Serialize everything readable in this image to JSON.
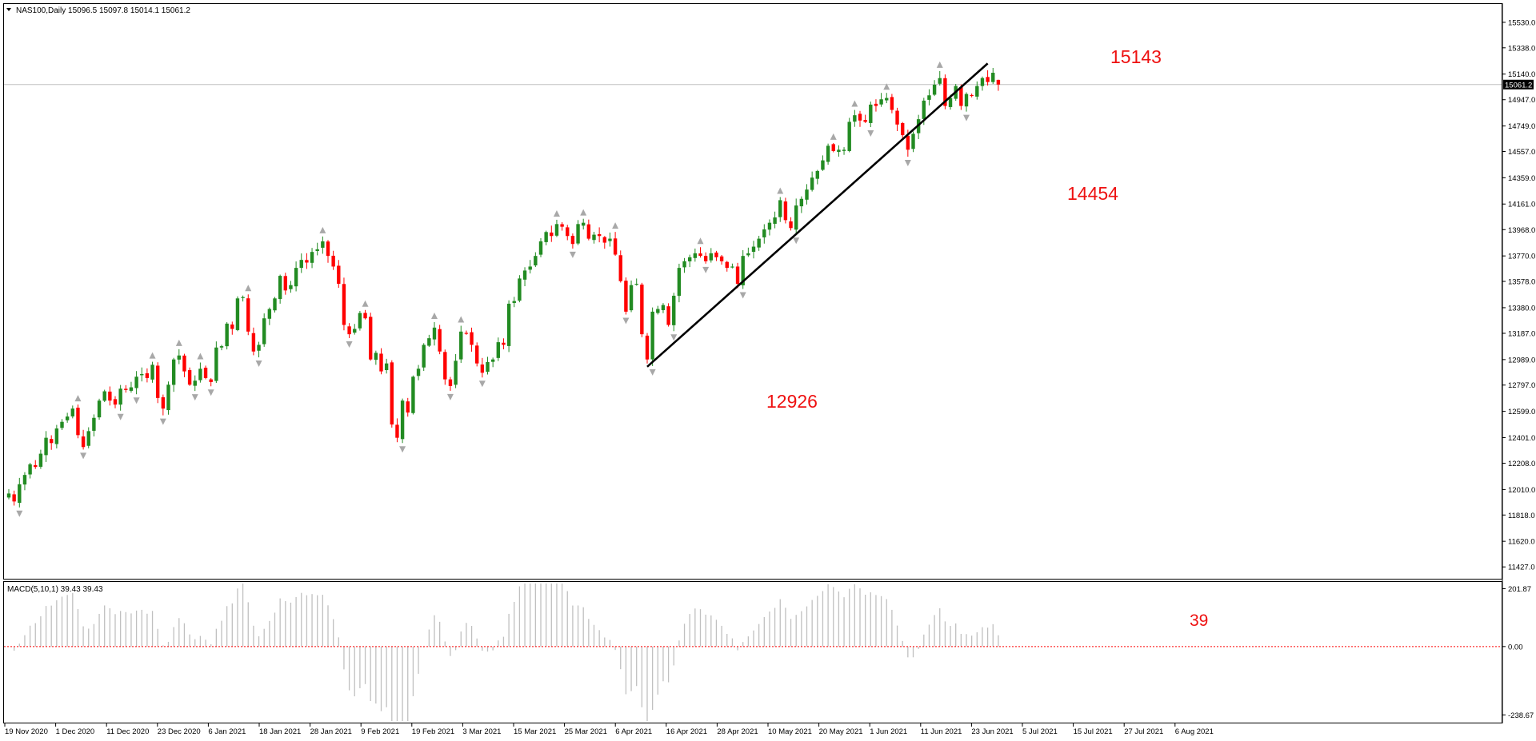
{
  "header": {
    "symbol_info": "NAS100,Daily  15096.5 15097.8 15014.1 15061.2",
    "macd_info": "MACD(5,10,1) 39.43 39.43"
  },
  "colors": {
    "bull": "#228B22",
    "bear": "#FF0000",
    "annotation": "#EE1111",
    "trendline": "#000000",
    "macd_bar": "#C0C0C0",
    "zero_line": "#FF0000",
    "price_line": "#C0C0C0",
    "current_price_bg": "#000000"
  },
  "chart_data": [
    {
      "type": "candlestick",
      "title": "NAS100,Daily",
      "ylim": [
        11350,
        15650
      ],
      "price_scale_labels": [
        "15530.0",
        "15338.0",
        "15140.0",
        "14947.0",
        "14749.0",
        "14557.0",
        "14359.0",
        "14161.0",
        "13968.0",
        "13770.0",
        "13578.0",
        "13380.0",
        "13187.0",
        "12989.0",
        "12797.0",
        "12599.0",
        "12401.0",
        "12208.0",
        "12010.0",
        "11818.0",
        "11620.0",
        "11427.0"
      ],
      "current_price": "15061.2",
      "date_labels": [
        "19 Nov 2020",
        "1 Dec 2020",
        "11 Dec 2020",
        "23 Dec 2020",
        "6 Jan 2021",
        "18 Jan 2021",
        "28 Jan 2021",
        "9 Feb 2021",
        "19 Feb 2021",
        "3 Mar 2021",
        "15 Mar 2021",
        "25 Mar 2021",
        "6 Apr 2021",
        "16 Apr 2021",
        "28 Apr 2021",
        "10 May 2021",
        "20 May 2021",
        "1 Jun 2021",
        "11 Jun 2021",
        "23 Jun 2021",
        "5 Jul 2021",
        "15 Jul 2021",
        "27 Jul 2021",
        "6 Aug 2021"
      ],
      "closes": [
        11980,
        11920,
        12050,
        12120,
        12200,
        12180,
        12280,
        12400,
        12360,
        12470,
        12520,
        12560,
        12620,
        12420,
        12330,
        12450,
        12550,
        12680,
        12750,
        12680,
        12650,
        12770,
        12760,
        12780,
        12860,
        12880,
        12850,
        12950,
        12700,
        12620,
        12800,
        12990,
        13020,
        12900,
        12800,
        12830,
        12920,
        12850,
        12820,
        13080,
        13090,
        13260,
        13220,
        13450,
        13460,
        13200,
        13050,
        13100,
        13300,
        13370,
        13450,
        13620,
        13510,
        13550,
        13680,
        13740,
        13720,
        13800,
        13820,
        13880,
        13770,
        13690,
        13560,
        13250,
        13180,
        13220,
        13340,
        13300,
        12990,
        13040,
        12900,
        12960,
        12500,
        12400,
        12680,
        12590,
        12860,
        12920,
        13100,
        13150,
        13230,
        13050,
        12840,
        12790,
        12980,
        13200,
        13190,
        13100,
        12960,
        12890,
        12970,
        12990,
        13120,
        13100,
        13410,
        13430,
        13600,
        13660,
        13690,
        13770,
        13880,
        13950,
        13920,
        14010,
        13990,
        13920,
        13860,
        14010,
        14020,
        13900,
        13930,
        13920,
        13870,
        13900,
        13780,
        13580,
        13350,
        13550,
        13560,
        13180,
        12990,
        13350,
        13370,
        13400,
        13250,
        13470,
        13680,
        13730,
        13760,
        13790,
        13770,
        13730,
        13790,
        13760,
        13730,
        13680,
        13690,
        13560,
        13770,
        13790,
        13840,
        13900,
        13970,
        14020,
        14060,
        14190,
        14040,
        13980,
        14150,
        14200,
        14270,
        14360,
        14410,
        14490,
        14600,
        14560,
        14570,
        14570,
        14780,
        14830,
        14790,
        14780,
        14910,
        14900,
        14950,
        14960,
        14870,
        14760,
        14680,
        14570,
        14690,
        14800,
        14940,
        14980,
        15060,
        15110,
        14900,
        14960,
        15050,
        14900,
        14990,
        14980,
        15050,
        15110,
        15080,
        15150,
        15061
      ],
      "annotations": {
        "high": "15143",
        "pullback_low": "14454",
        "swing_low": "12926"
      },
      "trendline": {
        "start": {
          "index": 120,
          "price": 12935
        },
        "end": {
          "index": 184,
          "price": 15220
        }
      },
      "show_fractals": true
    },
    {
      "type": "bar",
      "title": "MACD(5,10,1)",
      "ylim": [
        -260,
        220
      ],
      "scale_labels": [
        "201.87",
        "0.00",
        "-238.67"
      ],
      "zero_line_dashed": true,
      "last_value_label": "39"
    }
  ]
}
